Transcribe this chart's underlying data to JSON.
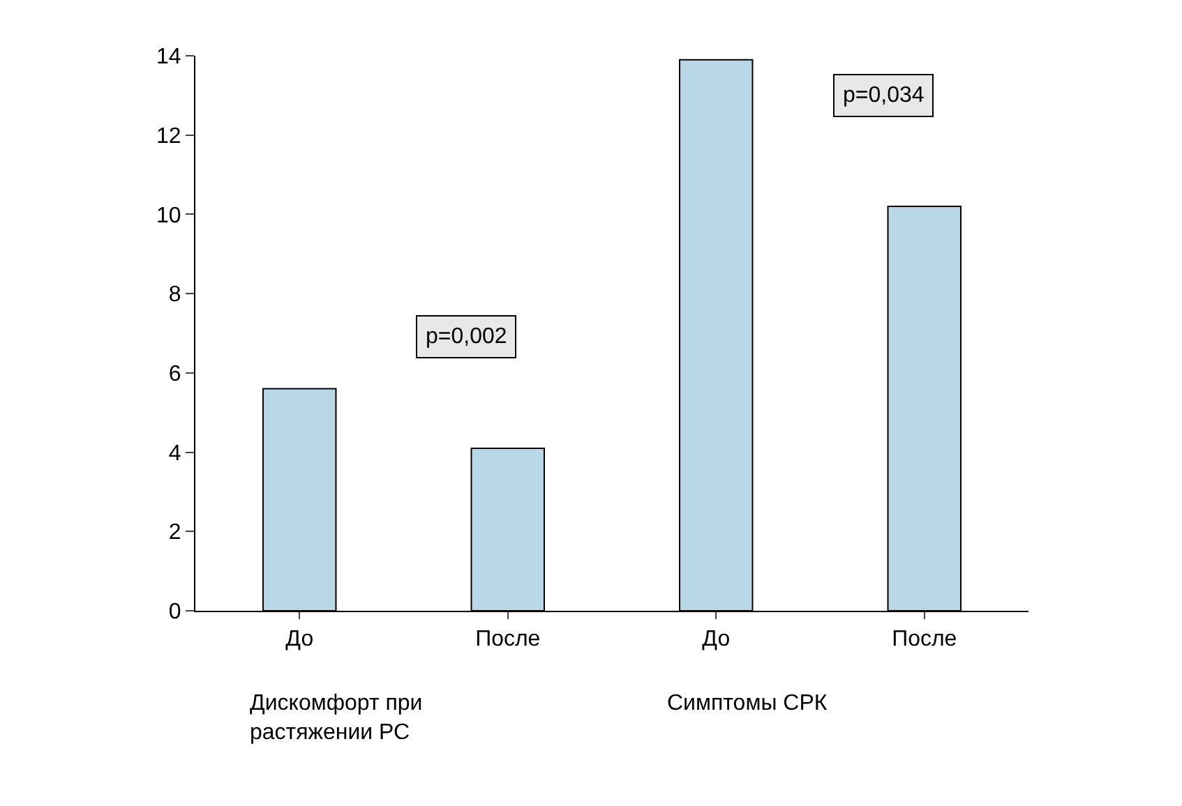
{
  "chart_data": {
    "type": "bar",
    "categories": [
      "До",
      "После",
      "До",
      "После"
    ],
    "values": [
      5.6,
      4.1,
      13.9,
      10.2
    ],
    "color": "#b8d8e8",
    "ylim": [
      0,
      14
    ],
    "yticks": [
      0,
      2,
      4,
      6,
      8,
      10,
      12,
      14
    ],
    "annotations": [
      "p=0,002",
      "p=0,034",
      "Дискомфорт при\nрастяжении РС",
      "Симптомы СРК"
    ]
  }
}
